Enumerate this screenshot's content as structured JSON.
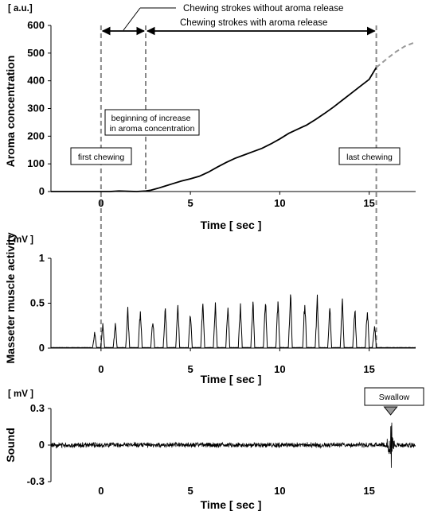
{
  "chart_data": [
    {
      "type": "line",
      "ylabel": "Aroma concentration",
      "yunit": "[ a.u.]",
      "xlabel": "Time [ sec ]",
      "xlim": [
        -2.8,
        17.6
      ],
      "ylim": [
        0,
        600
      ],
      "xticks": [
        0,
        5,
        10,
        15
      ],
      "yticks": [
        0,
        100,
        200,
        300,
        400,
        500,
        600
      ],
      "series": [
        {
          "style": "solid",
          "x": [
            -2.8,
            -1.5,
            -0.5,
            0,
            0.5,
            1,
            1.5,
            2,
            2.5,
            2.8,
            3.2,
            3.6,
            4,
            4.5,
            5,
            5.5,
            6,
            6.5,
            7,
            7.5,
            8,
            8.5,
            9,
            9.5,
            10,
            10.5,
            11,
            11.5,
            12,
            12.5,
            13,
            13.5,
            14,
            14.5,
            15,
            15.4
          ],
          "values": [
            0,
            0,
            0,
            0,
            0,
            2,
            1,
            0,
            2,
            5,
            12,
            20,
            28,
            38,
            46,
            55,
            70,
            88,
            105,
            120,
            132,
            144,
            156,
            172,
            190,
            210,
            225,
            240,
            260,
            282,
            305,
            330,
            355,
            380,
            405,
            448
          ]
        },
        {
          "style": "dashed",
          "x": [
            15.4,
            16,
            16.5,
            17,
            17.6
          ],
          "values": [
            448,
            480,
            505,
            525,
            540
          ]
        }
      ],
      "vlines": [
        {
          "x": 0,
          "label": "first chewing"
        },
        {
          "x": 2.5,
          "label": "beginning of increase in aroma concentration"
        },
        {
          "x": 15.4,
          "label": "last chewing"
        }
      ],
      "annotations": [
        {
          "text": "Chewing strokes without aroma release",
          "x_from": 0,
          "x_to": 2.5
        },
        {
          "text": "Chewing strokes with aroma release",
          "x_from": 2.5,
          "x_to": 15.4
        }
      ]
    },
    {
      "type": "line",
      "ylabel": "Masseter muscle activity",
      "yunit": "[ mV ]",
      "xlabel": "Time [ sec ]",
      "xlim": [
        -2.8,
        17.6
      ],
      "ylim": [
        0,
        1
      ],
      "xticks": [
        0,
        5,
        10,
        15
      ],
      "yticks": [
        0,
        0.5,
        1
      ],
      "burst_times": [
        -0.35,
        0.1,
        0.8,
        1.5,
        2.2,
        2.9,
        3.6,
        4.3,
        5.0,
        5.7,
        6.4,
        7.1,
        7.8,
        8.5,
        9.2,
        9.9,
        10.6,
        11.4,
        12.1,
        12.8,
        13.5,
        14.2,
        14.9,
        15.3
      ],
      "burst_peaks": [
        0.2,
        0.28,
        0.3,
        0.46,
        0.48,
        0.35,
        0.5,
        0.55,
        0.45,
        0.62,
        0.52,
        0.56,
        0.55,
        0.62,
        0.6,
        0.6,
        0.7,
        0.6,
        0.6,
        0.48,
        0.58,
        0.52,
        0.5,
        0.3
      ]
    },
    {
      "type": "line",
      "ylabel": "Sound",
      "yunit": "[ mV ]",
      "xlabel": "Time [ sec ]",
      "xlim": [
        -2.8,
        17.6
      ],
      "ylim": [
        -0.3,
        0.3
      ],
      "xticks": [
        0,
        5,
        10,
        15
      ],
      "yticks": [
        -0.3,
        0,
        0.3
      ],
      "event": {
        "label": "Swallow",
        "x": 16.2
      }
    }
  ],
  "colors": {
    "trace": "#000000",
    "dashed": "#999999",
    "callout_fill": "#999999"
  }
}
